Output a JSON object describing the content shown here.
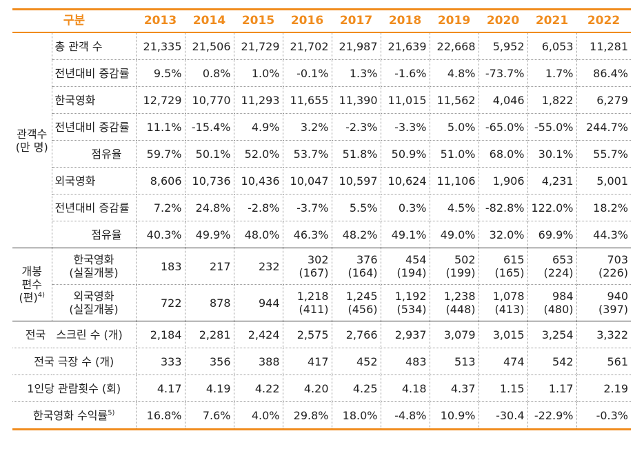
{
  "table": {
    "header": {
      "label": "구분",
      "years": [
        "2013",
        "2014",
        "2015",
        "2016",
        "2017",
        "2018",
        "2019",
        "2020",
        "2021",
        "2022"
      ]
    },
    "audience": {
      "group_label_line1": "관객수",
      "group_label_line2": "(만 명)",
      "rows": [
        {
          "label": "총 관객 수",
          "values": [
            "21,335",
            "21,506",
            "21,729",
            "21,702",
            "21,987",
            "21,639",
            "22,668",
            "5,952",
            "6,053",
            "11,281"
          ]
        },
        {
          "label": "전년대비 증감률",
          "values": [
            "9.5%",
            "0.8%",
            "1.0%",
            "-0.1%",
            "1.3%",
            "-1.6%",
            "4.8%",
            "-73.7%",
            "1.7%",
            "86.4%"
          ]
        },
        {
          "label": "한국영화",
          "values": [
            "12,729",
            "10,770",
            "11,293",
            "11,655",
            "11,390",
            "11,015",
            "11,562",
            "4,046",
            "1,822",
            "6,279"
          ]
        },
        {
          "label": "전년대비 증감률",
          "values": [
            "11.1%",
            "-15.4%",
            "4.9%",
            "3.2%",
            "-2.3%",
            "-3.3%",
            "5.0%",
            "-65.0%",
            "-55.0%",
            "244.7%"
          ]
        },
        {
          "label": "점유율",
          "values": [
            "59.7%",
            "50.1%",
            "52.0%",
            "53.7%",
            "51.8%",
            "50.9%",
            "51.0%",
            "68.0%",
            "30.1%",
            "55.7%"
          ]
        },
        {
          "label": "외국영화",
          "values": [
            "8,606",
            "10,736",
            "10,436",
            "10,047",
            "10,597",
            "10,624",
            "11,106",
            "1,906",
            "4,231",
            "5,001"
          ]
        },
        {
          "label": "전년대비 증감률",
          "values": [
            "7.2%",
            "24.8%",
            "-2.8%",
            "-3.7%",
            "5.5%",
            "0.3%",
            "4.5%",
            "-82.8%",
            "122.0%",
            "18.2%"
          ]
        },
        {
          "label": "점유율",
          "values": [
            "40.3%",
            "49.9%",
            "48.0%",
            "46.3%",
            "48.2%",
            "49.1%",
            "49.0%",
            "32.0%",
            "69.9%",
            "44.3%"
          ]
        }
      ]
    },
    "releases": {
      "group_label_line1": "개봉",
      "group_label_line2": "편수",
      "group_label_line3": "(편)",
      "group_label_sup": "4)",
      "rows": [
        {
          "label_line1": "한국영화",
          "label_line2": "(실질개봉)",
          "values": [
            "183",
            "217",
            "232",
            "302",
            "376",
            "454",
            "502",
            "615",
            "653",
            "703"
          ],
          "sub_values": [
            "",
            "",
            "",
            "(167)",
            "(164)",
            "(194)",
            "(199)",
            "(165)",
            "(224)",
            "(226)"
          ]
        },
        {
          "label_line1": "외국영화",
          "label_line2": "(실질개봉)",
          "values": [
            "722",
            "878",
            "944",
            "1,218",
            "1,245",
            "1,192",
            "1,238",
            "1,078",
            "984",
            "940"
          ],
          "sub_values": [
            "",
            "",
            "",
            "(411)",
            "(456)",
            "(534)",
            "(448)",
            "(413)",
            "(480)",
            "(397)"
          ]
        }
      ]
    },
    "other_rows": [
      {
        "label": "전국   스크린 수 (개)",
        "values": [
          "2,184",
          "2,281",
          "2,424",
          "2,575",
          "2,766",
          "2,937",
          "3,079",
          "3,015",
          "3,254",
          "3,322"
        ]
      },
      {
        "label": "전국 극장 수 (개)",
        "values": [
          "333",
          "356",
          "388",
          "417",
          "452",
          "483",
          "513",
          "474",
          "542",
          "561"
        ]
      },
      {
        "label": "1인당 관람횟수 (회)",
        "values": [
          "4.17",
          "4.19",
          "4.22",
          "4.20",
          "4.25",
          "4.18",
          "4.37",
          "1.15",
          "1.17",
          "2.19"
        ]
      },
      {
        "label": "한국영화 수익률",
        "label_sup": "5)",
        "values": [
          "16.8%",
          "7.6%",
          "4.0%",
          "29.8%",
          "18.0%",
          "-4.8%",
          "10.9%",
          "-30.4",
          "-22.9%",
          "-0.3%"
        ]
      }
    ]
  },
  "colors": {
    "accent": "#f08c1e"
  }
}
